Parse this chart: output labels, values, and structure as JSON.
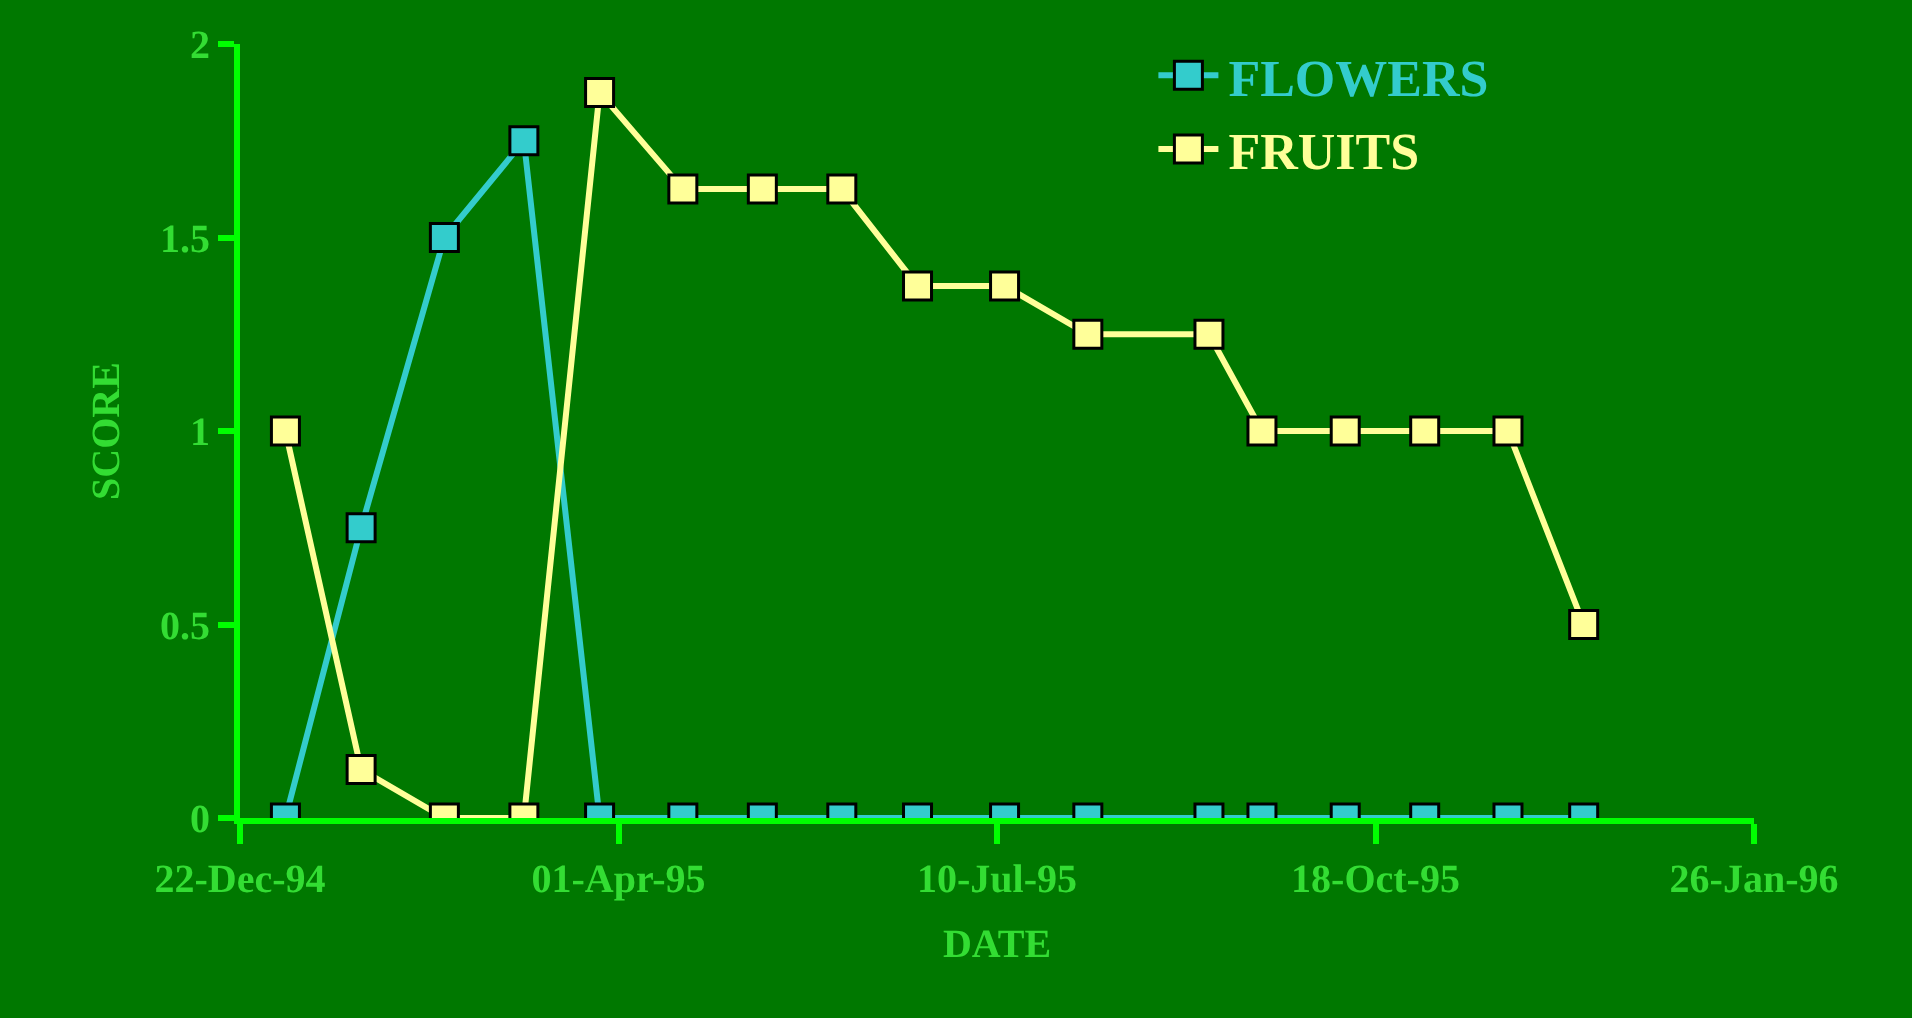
{
  "chart_data": {
    "type": "line",
    "xlabel": "DATE",
    "ylabel": "SCORE",
    "x": [
      "1995-01-03",
      "1995-01-23",
      "1995-02-14",
      "1995-03-07",
      "1995-03-27",
      "1995-04-18",
      "1995-05-09",
      "1995-05-30",
      "1995-06-19",
      "1995-07-12",
      "1995-08-03",
      "1995-09-04",
      "1995-09-18",
      "1995-10-10",
      "1995-10-31",
      "1995-11-22",
      "1995-12-12"
    ],
    "series": [
      {
        "name": "FLOWERS",
        "color": "#33cccc",
        "values": [
          0,
          0.75,
          1.5,
          1.75,
          0,
          0,
          0,
          0,
          0,
          0,
          0,
          0,
          0,
          0,
          0,
          0,
          0
        ]
      },
      {
        "name": "FRUITS",
        "color": "#ffff99",
        "values": [
          1,
          0.125,
          0,
          0,
          1.875,
          1.625,
          1.625,
          1.625,
          1.375,
          1.375,
          1.25,
          1.25,
          1,
          1,
          1,
          1,
          0.5
        ]
      }
    ],
    "xlim": [
      "1994-12-22",
      "1996-01-26"
    ],
    "xticks": [
      {
        "value": "1994-12-22",
        "label": "22-Dec-94"
      },
      {
        "value": "1995-04-01",
        "label": "01-Apr-95"
      },
      {
        "value": "1995-07-10",
        "label": "10-Jul-95"
      },
      {
        "value": "1995-10-18",
        "label": "18-Oct-95"
      },
      {
        "value": "1996-01-26",
        "label": "26-Jan-96"
      }
    ],
    "ylim": [
      0,
      2
    ],
    "yticks": [
      0,
      0.5,
      1,
      1.5,
      2
    ],
    "grid": false,
    "legend": "top right",
    "marker": "square",
    "line_style": "solid"
  }
}
